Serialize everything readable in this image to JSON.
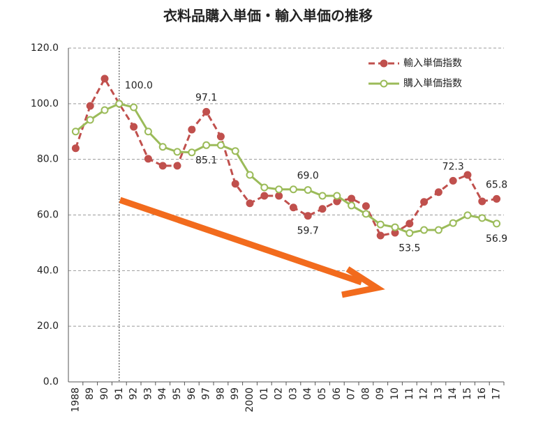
{
  "chart_data": {
    "type": "line",
    "title": "衣料品購入単価・輸入単価の推移",
    "categories": [
      "1988",
      "89",
      "90",
      "91",
      "92",
      "93",
      "94",
      "95",
      "96",
      "97",
      "98",
      "99",
      "2000",
      "01",
      "02",
      "03",
      "04",
      "05",
      "06",
      "07",
      "08",
      "09",
      "10",
      "11",
      "12",
      "13",
      "14",
      "15",
      "16",
      "17"
    ],
    "series": [
      {
        "name": "輸入単価指数",
        "color": "#c0504d",
        "values": [
          84,
          99.2,
          109,
          100,
          91.7,
          80.2,
          77.7,
          77.7,
          90.7,
          97.1,
          88.2,
          71.2,
          64.2,
          66.9,
          66.9,
          62.7,
          59.7,
          62.2,
          64.9,
          65.9,
          63.2,
          52.6,
          53.6,
          56.9,
          64.7,
          68.2,
          72.3,
          74.4,
          64.9,
          65.8
        ],
        "value_labels": [
          null,
          null,
          null,
          null,
          null,
          null,
          null,
          null,
          null,
          "97.1",
          null,
          null,
          null,
          null,
          null,
          null,
          "59.7",
          null,
          null,
          null,
          null,
          null,
          null,
          null,
          null,
          null,
          "72.3",
          null,
          null,
          "65.8"
        ]
      },
      {
        "name": "購入単価指数",
        "color": "#9bbb59",
        "values": [
          90,
          94.2,
          97.7,
          100,
          98.7,
          90,
          84.5,
          82.7,
          82.5,
          85.1,
          85.1,
          83,
          74.4,
          69.9,
          69.2,
          69.2,
          69,
          66.9,
          66.9,
          63.4,
          60.4,
          56.6,
          55.6,
          53.5,
          54.6,
          54.6,
          57.1,
          59.9,
          58.9,
          56.9
        ],
        "value_labels": [
          null,
          null,
          null,
          "100.0",
          null,
          null,
          null,
          null,
          null,
          "85.1",
          null,
          null,
          null,
          null,
          null,
          null,
          "69.0",
          null,
          null,
          null,
          null,
          null,
          null,
          "53.5",
          null,
          null,
          null,
          null,
          null,
          "56.9"
        ]
      }
    ],
    "ylim": [
      0,
      120
    ],
    "yticks": [
      {
        "value": 0,
        "label": "0.0"
      },
      {
        "value": 20,
        "label": "20.0"
      },
      {
        "value": 40,
        "label": "40.0"
      },
      {
        "value": 60,
        "label": "60.0"
      },
      {
        "value": 80,
        "label": "80.0"
      },
      {
        "value": 100,
        "label": "100.0"
      },
      {
        "value": 120,
        "label": "120.0"
      }
    ],
    "grid": true,
    "legend": "top-right"
  }
}
